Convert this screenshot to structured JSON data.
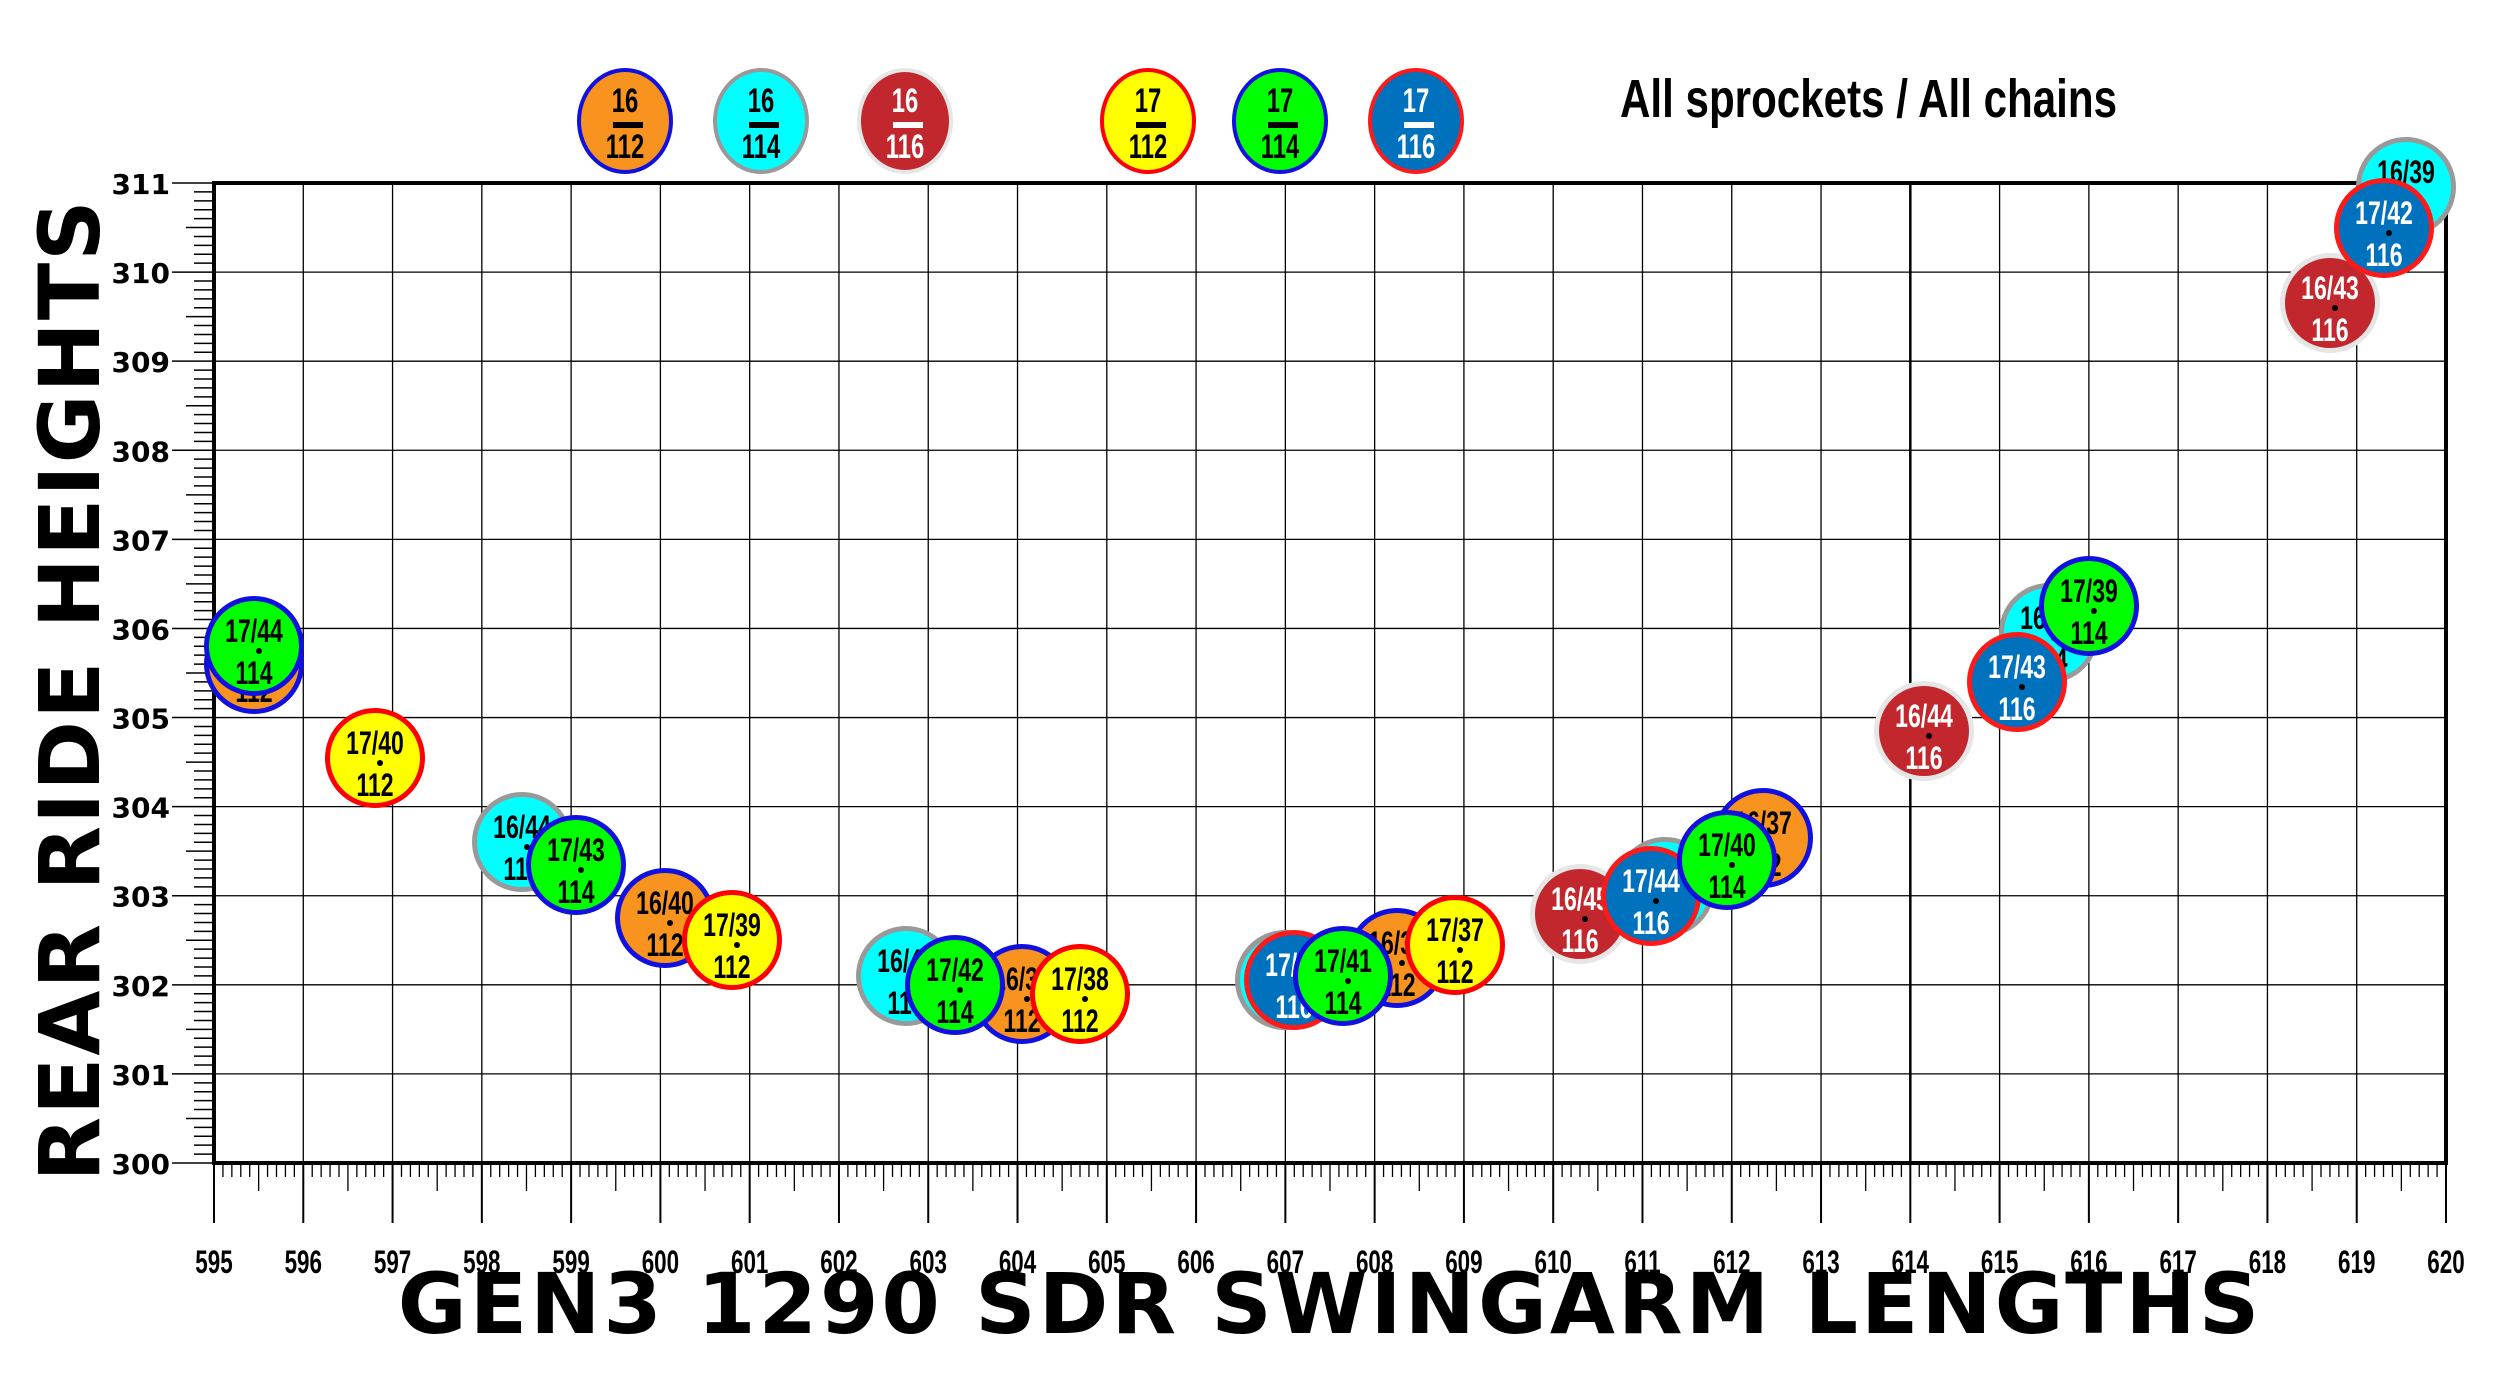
{
  "chart_data": {
    "type": "scatter",
    "title": "All sprockets / All chains",
    "xlabel": "GEN3 1290 SDR SWINGARM LENGTHS",
    "ylabel": "REAR RIDE HEIGHTS",
    "xlim": [
      595,
      620
    ],
    "ylim": [
      300,
      311
    ],
    "x_ticks": [
      595,
      596,
      597,
      598,
      599,
      600,
      601,
      602,
      603,
      604,
      605,
      606,
      607,
      608,
      609,
      610,
      611,
      612,
      613,
      614,
      615,
      616,
      617,
      618,
      619,
      620
    ],
    "y_ticks": [
      300,
      301,
      302,
      303,
      304,
      305,
      306,
      307,
      308,
      309,
      310,
      311
    ],
    "grid": true,
    "highlight_x_line": 614,
    "legend": [
      {
        "front": "16",
        "chain": "112",
        "fill": "#F7931E",
        "border": "#1010E0",
        "text": "#000000"
      },
      {
        "front": "16",
        "chain": "114",
        "fill": "#00FFFF",
        "border": "#999999",
        "text": "#000000"
      },
      {
        "front": "16",
        "chain": "116",
        "fill": "#C1272D",
        "border": "#E6E6E6",
        "text": "#FFFFFF"
      },
      {
        "front": "17",
        "chain": "112",
        "fill": "#FFFF00",
        "border": "#FF0000",
        "text": "#000000"
      },
      {
        "front": "17",
        "chain": "114",
        "fill": "#00FF00",
        "border": "#1010E0",
        "text": "#000000"
      },
      {
        "front": "17",
        "chain": "116",
        "fill": "#0071BC",
        "border": "#FF1A1A",
        "text": "#FFFFFF"
      }
    ],
    "series": [
      {
        "name": "16/112",
        "points": [
          {
            "x": 595.45,
            "y": 305.6,
            "label": "16/44"
          },
          {
            "x": 600.05,
            "y": 302.75,
            "label": "16/40"
          },
          {
            "x": 604.05,
            "y": 301.9,
            "label": "16/39"
          },
          {
            "x": 608.25,
            "y": 302.3,
            "label": "16/38"
          },
          {
            "x": 612.35,
            "y": 303.65,
            "label": "16/37"
          }
        ]
      },
      {
        "name": "16/114",
        "points": [
          {
            "x": 598.45,
            "y": 303.6,
            "label": "16/44"
          },
          {
            "x": 602.75,
            "y": 302.1,
            "label": "16/43"
          },
          {
            "x": 607.0,
            "y": 302.05,
            "label": "16/42"
          },
          {
            "x": 611.25,
            "y": 303.1,
            "label": "16/41"
          },
          {
            "x": 615.55,
            "y": 305.95,
            "label": "16/40"
          },
          {
            "x": 619.55,
            "y": 310.95,
            "label": "16/39"
          }
        ]
      },
      {
        "name": "16/116",
        "points": [
          {
            "x": 610.3,
            "y": 302.8,
            "label": "16/45"
          },
          {
            "x": 614.15,
            "y": 304.85,
            "label": "16/44"
          },
          {
            "x": 618.7,
            "y": 309.65,
            "label": "16/43"
          }
        ]
      },
      {
        "name": "17/112",
        "points": [
          {
            "x": 596.8,
            "y": 304.55,
            "label": "17/40"
          },
          {
            "x": 600.8,
            "y": 302.5,
            "label": "17/39"
          },
          {
            "x": 604.7,
            "y": 301.9,
            "label": "17/38"
          },
          {
            "x": 608.9,
            "y": 302.45,
            "label": "17/37"
          }
        ]
      },
      {
        "name": "17/114",
        "points": [
          {
            "x": 595.45,
            "y": 305.8,
            "label": "17/44"
          },
          {
            "x": 599.05,
            "y": 303.35,
            "label": "17/43"
          },
          {
            "x": 603.3,
            "y": 302.0,
            "label": "17/42"
          },
          {
            "x": 607.65,
            "y": 302.1,
            "label": "17/41"
          },
          {
            "x": 611.95,
            "y": 303.4,
            "label": "17/40"
          },
          {
            "x": 616.0,
            "y": 306.25,
            "label": "17/39"
          }
        ]
      },
      {
        "name": "17/116",
        "points": [
          {
            "x": 607.1,
            "y": 302.05,
            "label": "17/44"
          },
          {
            "x": 611.1,
            "y": 303.0,
            "label": "17/44"
          },
          {
            "x": 615.2,
            "y": 305.4,
            "label": "17/43"
          },
          {
            "x": 619.3,
            "y": 310.5,
            "label": "17/42"
          }
        ]
      }
    ]
  },
  "labels": {
    "subtitle": "All sprockets / All chains",
    "xlabel": "GEN3 1290 SDR SWINGARM LENGTHS",
    "ylabel": "REAR RIDE HEIGHTS"
  }
}
